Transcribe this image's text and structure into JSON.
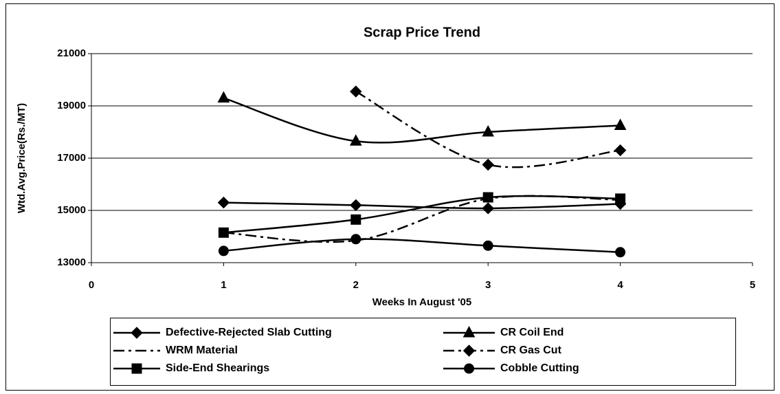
{
  "chart_data": {
    "type": "line",
    "title": "Scrap Price Trend",
    "x_label": "Weeks In August '05",
    "y_label": "Wtd.Avg.Price(Rs./MT)",
    "x": [
      1,
      2,
      3,
      4
    ],
    "xlim": [
      0,
      5
    ],
    "xticks": [
      0,
      1,
      2,
      3,
      4,
      5
    ],
    "ylim": [
      13000,
      21000
    ],
    "yticks": [
      13000,
      15000,
      17000,
      19000,
      21000
    ],
    "grid": true,
    "smooth": true,
    "legend": "bottom",
    "series": [
      {
        "name": "Defective-Rejected Slab Cutting",
        "color": "#000000",
        "marker": "diamond",
        "dash": false,
        "values": [
          15300,
          15200,
          15080,
          15250
        ]
      },
      {
        "name": "CR Coil End",
        "color": "#000000",
        "marker": "triangle",
        "dash": false,
        "values": [
          19300,
          17650,
          18000,
          18250
        ]
      },
      {
        "name": "WRM Material",
        "color": "#000000",
        "marker": "none",
        "dash": true,
        "values": [
          14150,
          13850,
          15450,
          15400
        ]
      },
      {
        "name": "CR Gas Cut",
        "color": "#000000",
        "marker": "diamond",
        "dash": true,
        "values": [
          null,
          19550,
          16750,
          17300
        ]
      },
      {
        "name": "Side-End Shearings",
        "color": "#000000",
        "marker": "square",
        "dash": false,
        "values": [
          14150,
          14650,
          15500,
          15450
        ]
      },
      {
        "name": "Cobble Cutting",
        "color": "#000000",
        "marker": "circle",
        "dash": false,
        "values": [
          13450,
          13900,
          13650,
          13400
        ]
      }
    ]
  }
}
